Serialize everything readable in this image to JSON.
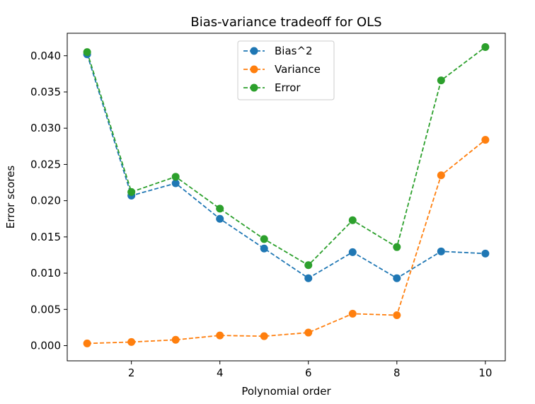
{
  "chart_data": {
    "type": "line",
    "title": "Bias-variance tradeoff for OLS",
    "xlabel": "Polynomial order",
    "ylabel": "Error scores",
    "x": [
      1,
      2,
      3,
      4,
      5,
      6,
      7,
      8,
      9,
      10
    ],
    "xlim": [
      0.55,
      10.45
    ],
    "ylim": [
      -0.0021,
      0.0431
    ],
    "xticks": [
      2,
      4,
      6,
      8,
      10
    ],
    "xtick_labels": [
      "2",
      "4",
      "6",
      "8",
      "10"
    ],
    "yticks": [
      0.0,
      0.005,
      0.01,
      0.015,
      0.02,
      0.025,
      0.03,
      0.035,
      0.04
    ],
    "ytick_labels": [
      "0.000",
      "0.005",
      "0.010",
      "0.015",
      "0.020",
      "0.025",
      "0.030",
      "0.035",
      "0.040"
    ],
    "grid": false,
    "legend_position": "upper center",
    "series": [
      {
        "name": "Bias^2",
        "color": "#1f77b4",
        "linestyle": "dashed",
        "marker": "circle",
        "values": [
          0.0402,
          0.0207,
          0.0224,
          0.0175,
          0.0134,
          0.0093,
          0.0129,
          0.0093,
          0.013,
          0.0127
        ]
      },
      {
        "name": "Variance",
        "color": "#ff7f0e",
        "linestyle": "dashed",
        "marker": "circle",
        "values": [
          0.0003,
          0.0005,
          0.0008,
          0.0014,
          0.0013,
          0.0018,
          0.0044,
          0.0042,
          0.0235,
          0.0284
        ]
      },
      {
        "name": "Error",
        "color": "#2ca02c",
        "linestyle": "dashed",
        "marker": "circle",
        "values": [
          0.0405,
          0.0212,
          0.0233,
          0.0189,
          0.0147,
          0.0111,
          0.0173,
          0.0136,
          0.0366,
          0.0412
        ]
      }
    ]
  }
}
